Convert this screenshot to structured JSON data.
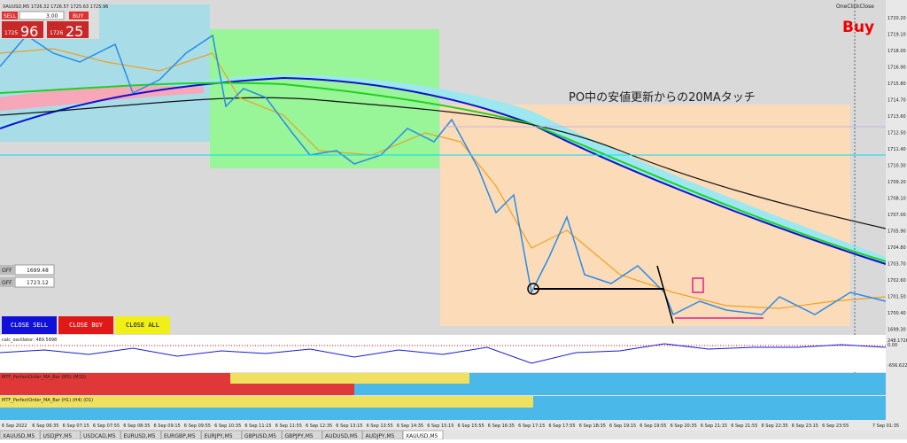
{
  "header": {
    "symbol_info": "XAUUSD,M5  1726.32 1726.57 1725.63 1725.96",
    "sell": "SELL",
    "buy": "BUY",
    "lot": "3.00",
    "sell_big": "1725",
    "sell_small": "96",
    "buy_big": "1726",
    "buy_small": "25"
  },
  "annotation": "PO中の安値更新からの20MAタッチ",
  "signal": "Buy",
  "one_click": "OneClickClose",
  "orders": [
    {
      "state": "OFF",
      "price": "1699.48"
    },
    {
      "state": "OFF",
      "price": "1723.12"
    }
  ],
  "buttons": [
    "CLOSE SELL",
    "CLOSE BUY",
    "CLOSE ALL"
  ],
  "price_axis": [
    "1720.20",
    "1719.10",
    "1718.00",
    "1716.90",
    "1715.80",
    "1714.70",
    "1713.60",
    "1712.50",
    "1711.40",
    "1710.30",
    "1709.20",
    "1708.10",
    "1707.00",
    "1705.90",
    "1704.80",
    "1703.70",
    "1702.60",
    "1701.50",
    "1700.40",
    "1699.30"
  ],
  "oscillator": {
    "label": "calc_oscillator: 489.5998",
    "ticks": [
      "248.1726",
      "0.00",
      "-656.622"
    ]
  },
  "bars": [
    "MTF_PerfectOrder_MA_Bar (M5) (M15)",
    "MTF_PerfectOrder_MA_Bar (H1) (H4) (D1)"
  ],
  "time_axis": [
    "6 Sep 2022",
    "6 Sep 06:35",
    "6 Sep 07:15",
    "6 Sep 07:55",
    "6 Sep 08:35",
    "6 Sep 09:15",
    "6 Sep 09:55",
    "6 Sep 10:35",
    "6 Sep 11:15",
    "6 Sep 11:55",
    "6 Sep 12:35",
    "6 Sep 13:15",
    "6 Sep 13:55",
    "6 Sep 14:35",
    "6 Sep 15:15",
    "6 Sep 15:55",
    "6 Sep 16:35",
    "6 Sep 17:15",
    "6 Sep 17:55",
    "6 Sep 18:35",
    "6 Sep 19:15",
    "6 Sep 19:55",
    "6 Sep 20:35",
    "6 Sep 21:15",
    "6 Sep 21:55",
    "6 Sep 22:35",
    "6 Sep 23:15",
    "6 Sep 23:55",
    "7 Sep 01:35"
  ],
  "tabs": [
    "XAUUSD,M5",
    "USDJPY,M5",
    "USDCAD,M5",
    "EURUSD,M5",
    "EURGBP,M5",
    "EURJPY,M5",
    "GBPUSD,M5",
    "GBPJPY,M5",
    "AUDUSD,M5",
    "AUDJPY,M5",
    "XAUUSD,M5"
  ]
}
